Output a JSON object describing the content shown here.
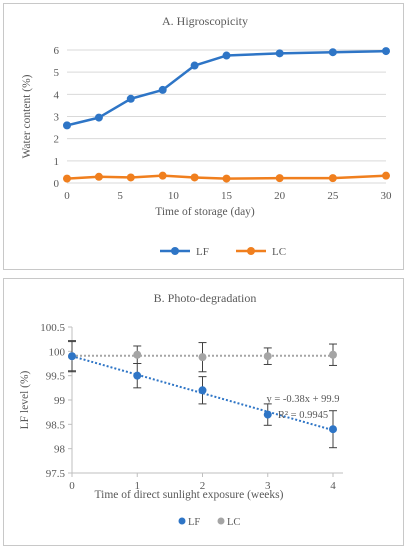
{
  "chart_data": [
    {
      "type": "line",
      "title": "A. Higroscopicity",
      "xlabel": "Time of storage (day)",
      "ylabel": "Water content (%)",
      "x_ticks": [
        0,
        5,
        10,
        15,
        20,
        25,
        30
      ],
      "y_ticks": [
        0,
        1,
        2,
        3,
        4,
        5,
        6
      ],
      "xlim": [
        0,
        30
      ],
      "ylim": [
        0,
        6
      ],
      "grid": "horizontal",
      "legend_position": "bottom",
      "series": [
        {
          "name": "LF",
          "color": "#2e75c6",
          "x": [
            0,
            3,
            6,
            9,
            12,
            15,
            20,
            25,
            30
          ],
          "y": [
            2.6,
            2.95,
            3.8,
            4.2,
            5.3,
            5.75,
            5.85,
            5.9,
            5.95
          ]
        },
        {
          "name": "LC",
          "color": "#f07f1e",
          "x": [
            0,
            3,
            6,
            9,
            12,
            15,
            20,
            25,
            30
          ],
          "y": [
            0.2,
            0.28,
            0.25,
            0.33,
            0.25,
            0.2,
            0.22,
            0.22,
            0.33
          ]
        }
      ]
    },
    {
      "type": "scatter",
      "title": "B. Photo-degradation",
      "xlabel": "Time of direct sunlight exposure (weeks)",
      "ylabel": "LF level (%)",
      "x_ticks": [
        "0",
        "1",
        "2",
        "3",
        "4"
      ],
      "y_ticks": [
        "97.5",
        "98",
        "98.5",
        "99",
        "99.5",
        "100",
        "100.5"
      ],
      "xlim": [
        0,
        4
      ],
      "ylim": [
        97.5,
        100.5
      ],
      "grid": "none",
      "legend_position": "bottom",
      "annotation": [
        "y = -0.38x + 99.9",
        "R² = 0.9945"
      ],
      "series": [
        {
          "name": "LF",
          "color": "#2e75c6",
          "x": [
            0,
            1,
            2,
            3,
            4
          ],
          "y": [
            99.9,
            99.5,
            99.2,
            98.7,
            98.4
          ],
          "error": [
            0.3,
            0.25,
            0.28,
            0.22,
            0.38
          ],
          "trendline": "linear"
        },
        {
          "name": "LC",
          "color": "#a5a5a5",
          "x": [
            0,
            1,
            2,
            3,
            4
          ],
          "y": [
            99.9,
            99.93,
            99.88,
            99.9,
            99.93
          ],
          "error": [
            0.32,
            0.18,
            0.3,
            0.17,
            0.22
          ],
          "trendline": "flat"
        }
      ]
    }
  ]
}
